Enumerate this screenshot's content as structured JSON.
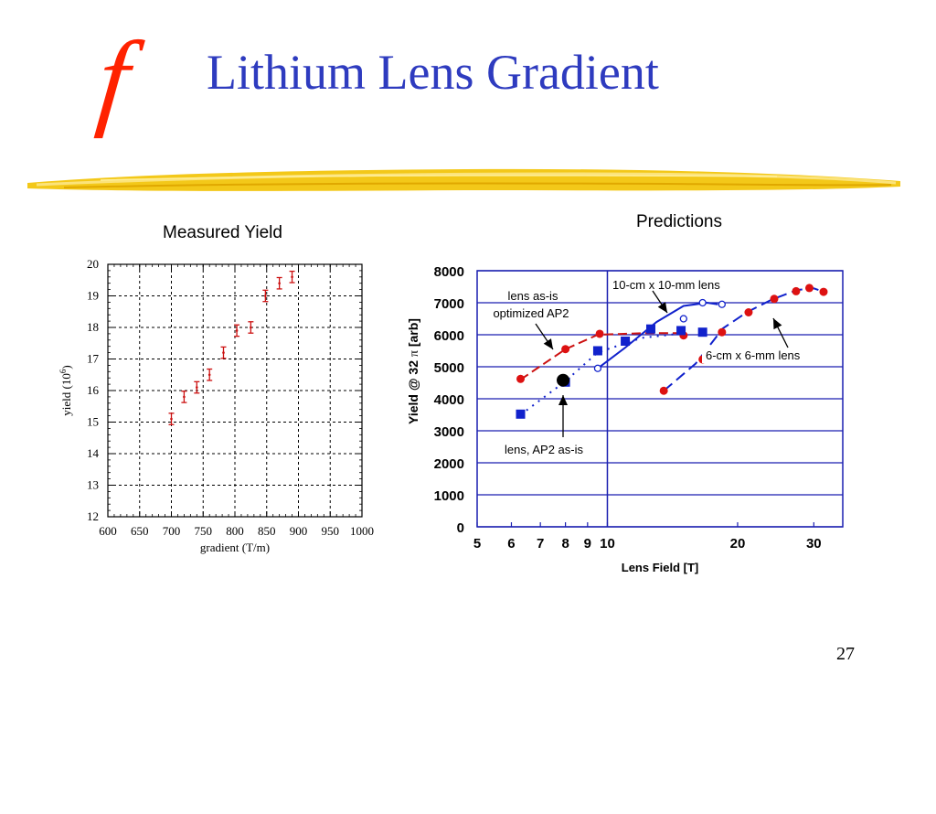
{
  "slide": {
    "title": "Lithium Lens Gradient",
    "logo_letter": "f",
    "logo_color": "#ff2200",
    "title_color": "#2e3bbf",
    "divider_color": "#f2c200",
    "page_number": "27"
  },
  "chart_data": [
    {
      "id": "measured",
      "type": "scatter",
      "title": "Measured Yield",
      "xlabel": "gradient (T/m)",
      "ylabel_main": "yield (10",
      "ylabel_sup": "6",
      "ylabel_end": ")",
      "xlim": [
        600,
        1000
      ],
      "ylim": [
        12,
        20
      ],
      "xticks": [
        600,
        650,
        700,
        750,
        800,
        850,
        900,
        950,
        1000
      ],
      "xtick_labels": [
        "600",
        "650",
        "700",
        "750",
        "800",
        "850",
        "900",
        "950",
        "1000"
      ],
      "yticks": [
        12,
        13,
        14,
        15,
        16,
        17,
        18,
        19,
        20
      ],
      "ytick_labels": [
        "12",
        "13",
        "14",
        "15",
        "16",
        "17",
        "18",
        "19",
        "20"
      ],
      "grid": true,
      "grid_style": "dashed",
      "marker": "error-bar",
      "color": "#cc1111",
      "points": [
        {
          "x": 700,
          "y": 15.1,
          "err": 0.18
        },
        {
          "x": 720,
          "y": 15.8,
          "err": 0.18
        },
        {
          "x": 740,
          "y": 16.1,
          "err": 0.18
        },
        {
          "x": 760,
          "y": 16.5,
          "err": 0.18
        },
        {
          "x": 782,
          "y": 17.2,
          "err": 0.18
        },
        {
          "x": 803,
          "y": 17.9,
          "err": 0.18
        },
        {
          "x": 825,
          "y": 18.0,
          "err": 0.18
        },
        {
          "x": 848,
          "y": 19.0,
          "err": 0.18
        },
        {
          "x": 870,
          "y": 19.4,
          "err": 0.18
        },
        {
          "x": 890,
          "y": 19.6,
          "err": 0.18
        }
      ]
    },
    {
      "id": "predictions",
      "type": "line",
      "title": "Predictions",
      "xlabel": "Lens Field  [T]",
      "ylabel": "Yield @ 32",
      "ylabel_pi": "π",
      "ylabel_unit": "[arb]",
      "xscale": "log",
      "xlim": [
        5,
        35
      ],
      "ylim": [
        0,
        8000
      ],
      "xticks": [
        5,
        6,
        7,
        8,
        9,
        10,
        20,
        30
      ],
      "xtick_labels": [
        "5",
        "6",
        "7",
        "8",
        "9",
        "10",
        "20",
        "30"
      ],
      "yticks": [
        0,
        1000,
        2000,
        3000,
        4000,
        5000,
        6000,
        7000,
        8000
      ],
      "ytick_labels": [
        "0",
        "1000",
        "2000",
        "3000",
        "4000",
        "5000",
        "6000",
        "7000",
        "8000"
      ],
      "grid": "horizontal",
      "vline_x": 10,
      "axis_color": "#1a1fb0",
      "series": [
        {
          "key": "lens_asis_optimized",
          "color": "#cc1111",
          "dash": "10,5",
          "marker": "circle-filled",
          "line": [
            [
              6.3,
              4600
            ],
            [
              8.0,
              5550
            ],
            [
              9.5,
              6000
            ],
            [
              12,
              6050
            ],
            [
              15,
              6050
            ]
          ],
          "points": [
            [
              6.3,
              4620
            ],
            [
              8.0,
              5550
            ],
            [
              9.6,
              6030
            ],
            [
              12.6,
              6160
            ],
            [
              15,
              5980
            ]
          ]
        },
        {
          "key": "lens_ap2_asis",
          "color": "#1122cc",
          "dash": "2,6",
          "marker": "square-filled",
          "line": [
            [
              6.3,
              3500
            ],
            [
              8.0,
              4550
            ],
            [
              9.5,
              5450
            ],
            [
              12,
              5900
            ],
            [
              15,
              6050
            ]
          ],
          "points": [
            [
              6.3,
              3520
            ],
            [
              8.0,
              4520
            ],
            [
              9.5,
              5500
            ],
            [
              11,
              5800
            ],
            [
              12.6,
              6180
            ],
            [
              14.8,
              6130
            ],
            [
              16.6,
              6080
            ]
          ]
        },
        {
          "key": "lens_10cm_10mm",
          "color": "#1122cc",
          "dash": "",
          "marker": "circle-open",
          "line": [
            [
              9.5,
              4950
            ],
            [
              11,
              5600
            ],
            [
              13,
              6400
            ],
            [
              15,
              6900
            ],
            [
              17,
              7000
            ],
            [
              18,
              6950
            ]
          ],
          "points": [
            [
              9.5,
              4950
            ],
            [
              15,
              6500
            ],
            [
              16.6,
              7000
            ],
            [
              18.4,
              6950
            ]
          ]
        },
        {
          "key": "lens_6cm_6mm_blue",
          "color": "#1122cc",
          "dash": "12,6",
          "marker": "circle-filled-red",
          "line": [
            [
              13.5,
              4250
            ],
            [
              16,
              5100
            ],
            [
              18.5,
              6200
            ],
            [
              21,
              6700
            ],
            [
              24,
              7100
            ],
            [
              27.5,
              7400
            ],
            [
              30,
              7450
            ],
            [
              31.5,
              7350
            ]
          ],
          "points": [
            [
              13.5,
              4250
            ],
            [
              16.6,
              5230
            ],
            [
              18.4,
              6080
            ],
            [
              21.2,
              6700
            ],
            [
              24.3,
              7120
            ],
            [
              27.3,
              7360
            ],
            [
              29.3,
              7460
            ],
            [
              31.6,
              7340
            ]
          ]
        }
      ],
      "highlight_point": {
        "x": 7.9,
        "y": 4580,
        "color": "#000000"
      },
      "annotations": [
        {
          "key": "ann_10cm",
          "text": "10-cm x 10-mm lens"
        },
        {
          "key": "ann_lens_asis",
          "text": "lens as-is"
        },
        {
          "key": "ann_optimized",
          "text": "optimized AP2"
        },
        {
          "key": "ann_6cm",
          "text": "6-cm x 6-mm lens"
        },
        {
          "key": "ann_ap2",
          "text": "lens, AP2 as-is"
        }
      ]
    }
  ]
}
